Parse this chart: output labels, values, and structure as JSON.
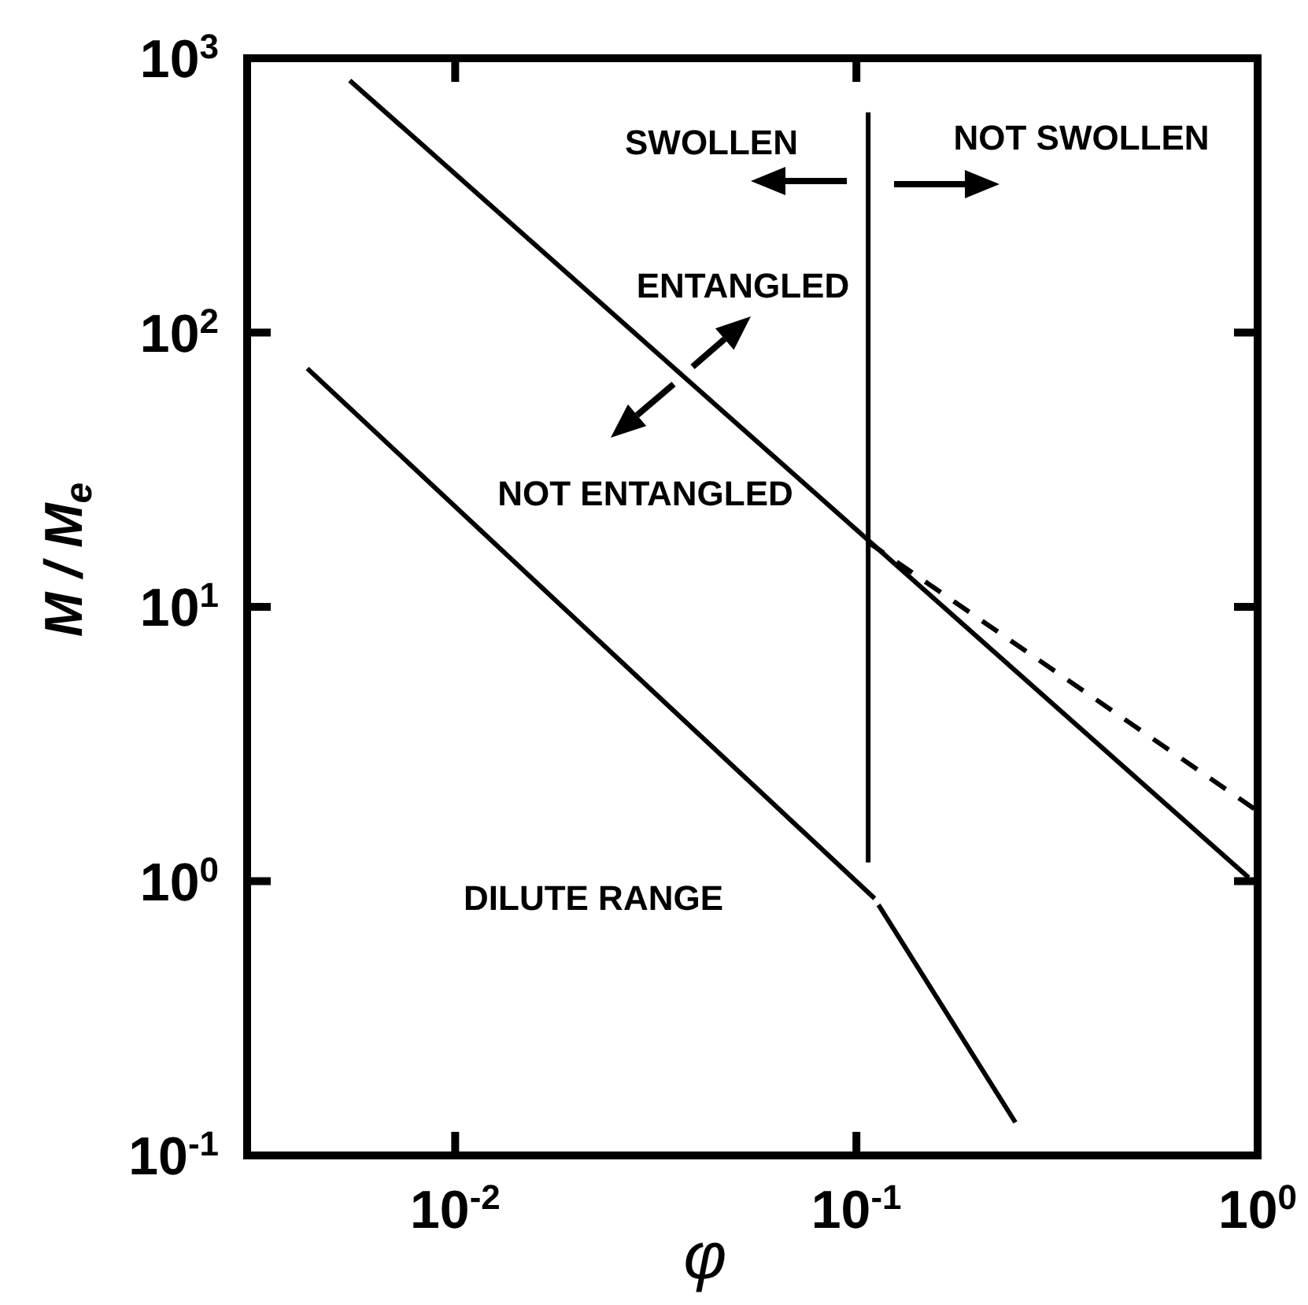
{
  "chart_data": {
    "type": "line",
    "xlabel": "φ",
    "ylabel": "M / M$_{e}$",
    "log": "xy",
    "xlim": [
      0.00303,
      1
    ],
    "ylim": [
      0.1,
      1000
    ],
    "xticks": [
      {
        "value": 0.01,
        "label": "10$^{-2}$"
      },
      {
        "value": 0.1,
        "label": "10$^{-1}$"
      },
      {
        "value": 1,
        "label": "10$^{0}$"
      }
    ],
    "yticks": [
      {
        "value": 0.1,
        "label": "10$^{-1}$"
      },
      {
        "value": 1,
        "label": "10$^{0}$"
      },
      {
        "value": 10,
        "label": "10$^{1}$"
      },
      {
        "value": 100,
        "label": "10$^{2}$"
      },
      {
        "value": 1000,
        "label": "10$^{3}$"
      }
    ],
    "series": [
      {
        "color": "#000000",
        "line_style": "solid",
        "x": [
          0.00546,
          0.95
        ],
        "values": [
          830,
          1.03
        ]
      },
      {
        "color": "#000000",
        "line_style": "dashed",
        "x": [
          0.107,
          1
        ],
        "values": [
          17.2,
          1.8
        ]
      },
      {
        "color": "#000000",
        "line_style": "solid",
        "x": [
          0.107,
          0.107
        ],
        "values": [
          635,
          1.17
        ]
      },
      {
        "color": "#000000",
        "line_style": "solid",
        "x": [
          0.00428,
          0.111
        ],
        "values": [
          74,
          0.865
        ]
      },
      {
        "color": "#000000",
        "line_style": "solid",
        "x": [
          0.1135,
          0.249
        ],
        "values": [
          0.82,
          0.132
        ]
      }
    ],
    "annotations": [
      "SWOLLEN",
      "NOT SWOLLEN",
      "ENTANGLED",
      "NOT ENTANGLED",
      "DILUTE RANGE"
    ]
  }
}
